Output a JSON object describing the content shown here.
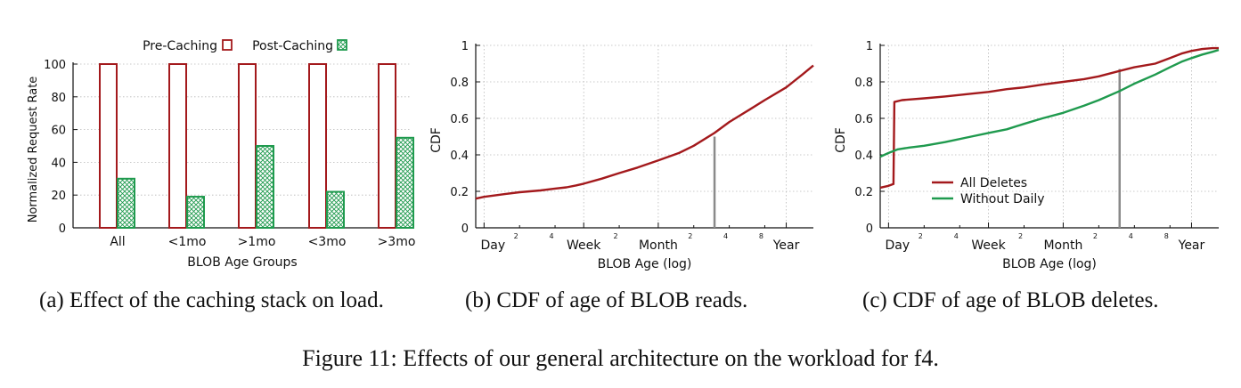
{
  "figure_caption": "Figure 11: Effects of our general architecture on the workload for f4.",
  "colors": {
    "red": "#a3191c",
    "green": "#1f9a4e",
    "gray": "#8a8a8a",
    "grid": "#b8b8b8"
  },
  "panels": [
    {
      "caption": "(a) Effect of the caching stack on load."
    },
    {
      "caption": "(b) CDF of age of BLOB reads."
    },
    {
      "caption": "(c) CDF of age of BLOB deletes."
    }
  ],
  "chart_data": [
    {
      "type": "bar",
      "title": "",
      "xlabel": "BLOB Age Groups",
      "ylabel": "Normalized Request Rate",
      "ylim": [
        0,
        100
      ],
      "yticks": [
        "0",
        "20",
        "40",
        "60",
        "80",
        "100"
      ],
      "categories": [
        "All",
        "<1mo",
        ">1mo",
        "<3mo",
        ">3mo"
      ],
      "legend_position": "top",
      "series": [
        {
          "name": "Pre-Caching",
          "values": [
            100,
            100,
            100,
            100,
            100
          ]
        },
        {
          "name": "Post-Caching",
          "values": [
            30,
            19,
            50,
            22,
            55
          ]
        }
      ]
    },
    {
      "type": "line",
      "title": "",
      "xlabel": "BLOB Age (log)",
      "ylabel": "CDF",
      "ylim": [
        0,
        1
      ],
      "yticks": [
        "0",
        "0.2",
        "0.4",
        "0.6",
        "0.8",
        "1"
      ],
      "x_scale": "log (days)",
      "xticks_major": [
        {
          "label": "Day",
          "days": 1
        },
        {
          "label": "Week",
          "days": 7
        },
        {
          "label": "Month",
          "days": 30
        },
        {
          "label": "Year",
          "days": 365
        }
      ],
      "xticks_minor": [
        {
          "label": "2",
          "days": 2
        },
        {
          "label": "4",
          "days": 4
        },
        {
          "label": "2",
          "days": 14
        },
        {
          "label": "2",
          "days": 60
        },
        {
          "label": "4",
          "days": 120
        },
        {
          "label": "8",
          "days": 240
        }
      ],
      "grid": true,
      "marker": {
        "days": 90,
        "cdf": 0.5
      },
      "series": [
        {
          "x": [
            0.85,
            1,
            1.5,
            2,
            3,
            4,
            5,
            6,
            7,
            10,
            14,
            20,
            30,
            45,
            60,
            90,
            120,
            180,
            240,
            365,
            500,
            620
          ],
          "y": [
            0.16,
            0.17,
            0.185,
            0.195,
            0.205,
            0.215,
            0.222,
            0.232,
            0.242,
            0.27,
            0.3,
            0.33,
            0.37,
            0.41,
            0.45,
            0.52,
            0.58,
            0.65,
            0.7,
            0.77,
            0.84,
            0.89
          ]
        }
      ]
    },
    {
      "type": "line",
      "title": "",
      "xlabel": "BLOB Age (log)",
      "ylabel": "CDF",
      "ylim": [
        0,
        1
      ],
      "yticks": [
        "0",
        "0.2",
        "0.4",
        "0.6",
        "0.8",
        "1"
      ],
      "x_scale": "log (days)",
      "xticks_major": [
        {
          "label": "Day",
          "days": 1
        },
        {
          "label": "Week",
          "days": 7
        },
        {
          "label": "Month",
          "days": 30
        },
        {
          "label": "Year",
          "days": 365
        }
      ],
      "xticks_minor": [
        {
          "label": "2",
          "days": 2
        },
        {
          "label": "4",
          "days": 4
        },
        {
          "label": "2",
          "days": 14
        },
        {
          "label": "2",
          "days": 60
        },
        {
          "label": "4",
          "days": 120
        },
        {
          "label": "8",
          "days": 240
        }
      ],
      "grid": true,
      "legend_position": "center-left",
      "marker": {
        "days": 90,
        "cdf": 0.87
      },
      "series": [
        {
          "name": "All Deletes",
          "x": [
            0.85,
            1,
            1.1,
            1.12,
            1.3,
            2,
            3,
            5,
            7,
            10,
            14,
            20,
            30,
            45,
            60,
            90,
            120,
            180,
            240,
            300,
            365,
            450,
            550,
            620
          ],
          "y": [
            0.22,
            0.23,
            0.24,
            0.69,
            0.7,
            0.71,
            0.72,
            0.735,
            0.745,
            0.76,
            0.77,
            0.785,
            0.8,
            0.815,
            0.83,
            0.86,
            0.88,
            0.9,
            0.93,
            0.955,
            0.97,
            0.98,
            0.985,
            0.985
          ]
        },
        {
          "name": "Without Daily",
          "x": [
            0.85,
            1,
            1.2,
            1.5,
            2,
            3,
            5,
            7,
            10,
            14,
            20,
            30,
            45,
            60,
            90,
            120,
            180,
            240,
            300,
            365,
            450,
            550,
            620
          ],
          "y": [
            0.39,
            0.41,
            0.43,
            0.44,
            0.45,
            0.47,
            0.5,
            0.52,
            0.54,
            0.57,
            0.6,
            0.63,
            0.67,
            0.7,
            0.75,
            0.79,
            0.84,
            0.88,
            0.91,
            0.93,
            0.95,
            0.965,
            0.975
          ]
        }
      ]
    }
  ]
}
